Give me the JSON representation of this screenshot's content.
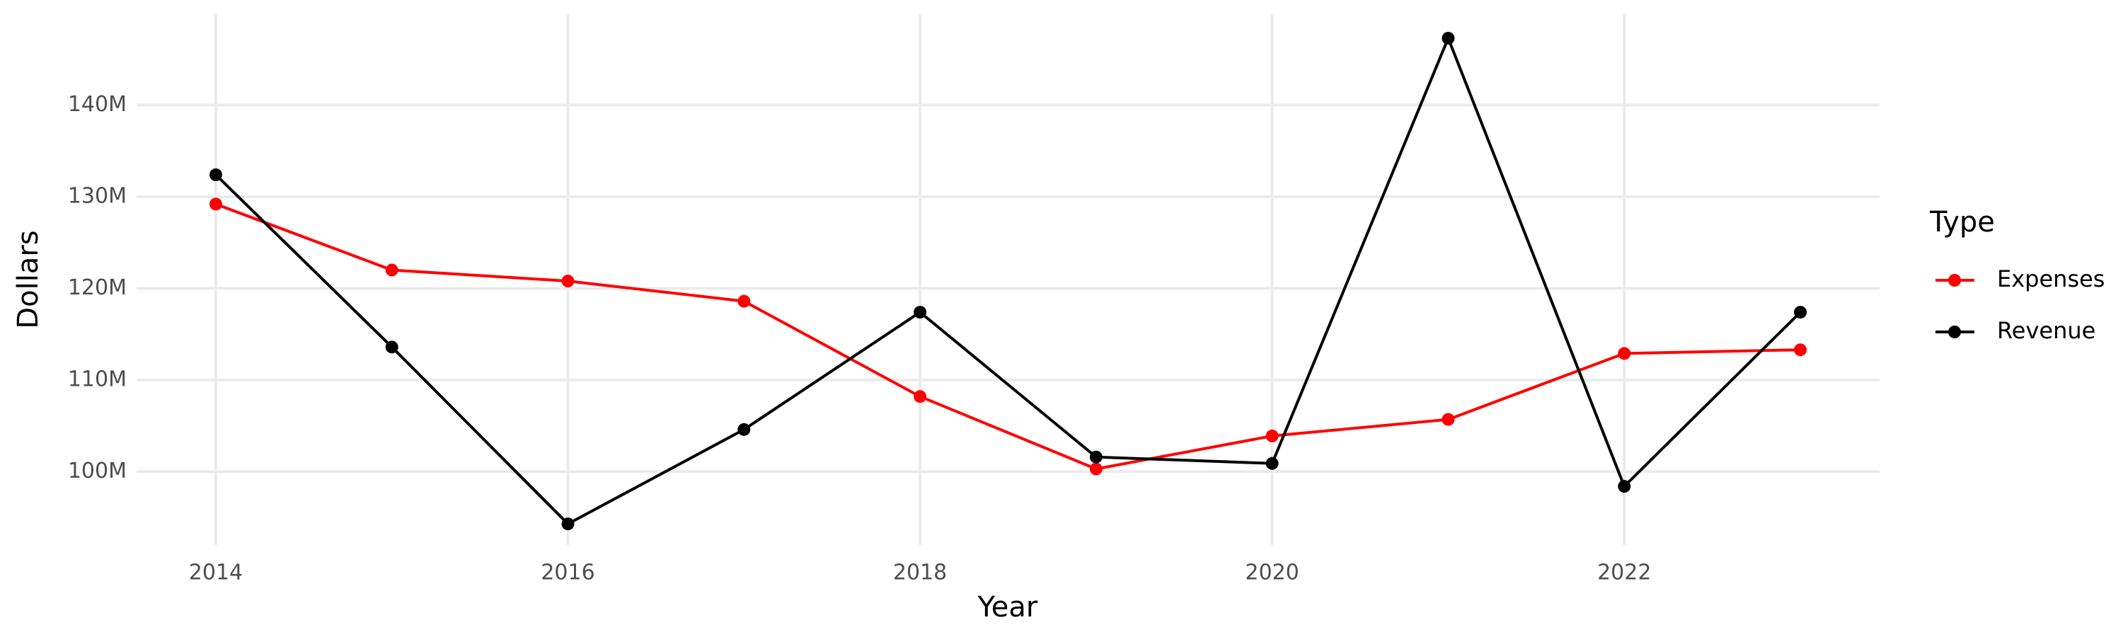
{
  "chart_data": {
    "type": "line",
    "x_label": "Year",
    "y_label": "Dollars",
    "x": [
      2014,
      2015,
      2016,
      2017,
      2018,
      2019,
      2020,
      2021,
      2022,
      2023
    ],
    "series": [
      {
        "name": "Expenses",
        "color": "#ff0000",
        "values": [
          129200000,
          122000000,
          120800000,
          118600000,
          108200000,
          100300000,
          103900000,
          105700000,
          112900000,
          113300000
        ]
      },
      {
        "name": "Revenue",
        "color": "#000000",
        "values": [
          132400000,
          113600000,
          94300000,
          104600000,
          117400000,
          101600000,
          100900000,
          147300000,
          98400000,
          117400000
        ]
      }
    ],
    "xlim": [
      2013.55,
      2023.45
    ],
    "xticks": [
      2014,
      2016,
      2018,
      2020,
      2022
    ],
    "ylim": [
      92000000,
      150000000
    ],
    "yticks": [
      {
        "value": 100000000,
        "label": "100M"
      },
      {
        "value": 110000000,
        "label": "110M"
      },
      {
        "value": 120000000,
        "label": "120M"
      },
      {
        "value": 130000000,
        "label": "130M"
      },
      {
        "value": 140000000,
        "label": "140M"
      }
    ],
    "grid": true,
    "legend_title": "Type",
    "legend_position": "right"
  }
}
